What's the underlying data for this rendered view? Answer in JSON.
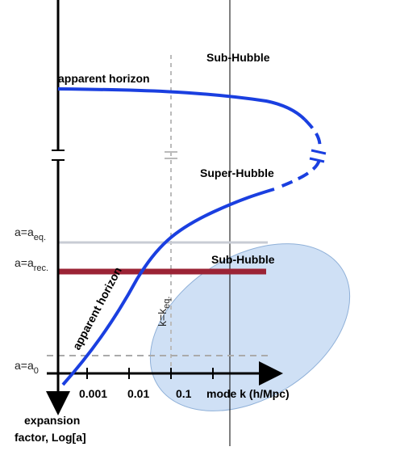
{
  "labels": {
    "sub_hubble_top": "Sub-Hubble",
    "apparent_horizon_top": "apparent horizon",
    "super_hubble": "Super-Hubble",
    "sub_hubble_bottom": "Sub-Hubble",
    "apparent_horizon_curve": "apparent horizon",
    "k_eq": {
      "main": "k=k",
      "sub": "eq."
    },
    "a_eq": {
      "main": "a=a",
      "sub": "eq."
    },
    "a_rec": {
      "main": "a=a",
      "sub": "rec."
    },
    "a_0": {
      "main": "a=a",
      "sub": "0"
    },
    "x_ticks": [
      "0.001",
      "0.01",
      "0.1"
    ],
    "x_axis": "mode k (h/Mpc)",
    "y_axis": [
      "expansion",
      "factor, Log[a]"
    ]
  }
}
